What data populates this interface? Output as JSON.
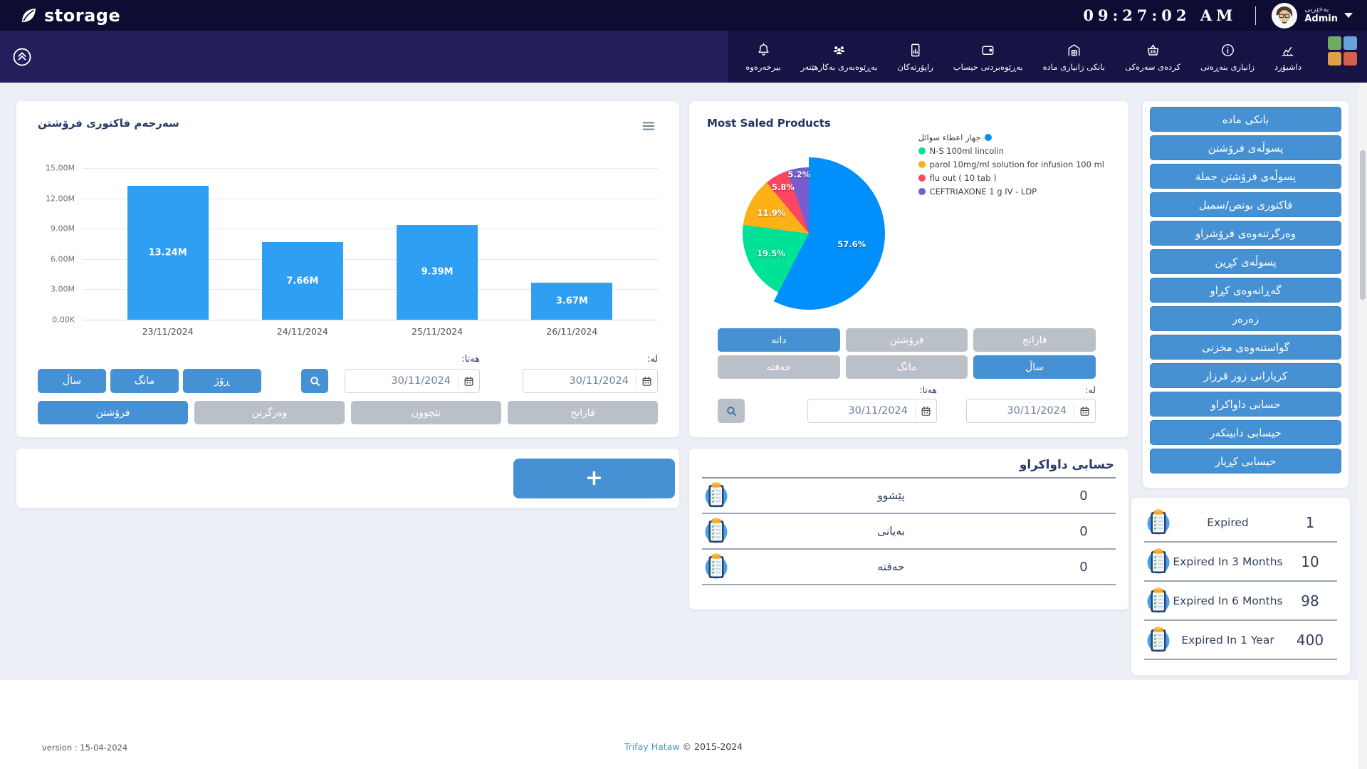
{
  "header": {
    "app_name": "storage",
    "clock": "09:27:02 AM",
    "greeting": "بەخێربی",
    "user": "Admin"
  },
  "nav": {
    "items": [
      {
        "label": "بیرخەرەوە",
        "icon": "bell-icon"
      },
      {
        "label": "بەڕێوەبەری بەکارهێنەر",
        "icon": "users-icon"
      },
      {
        "label": "راپۆرتەکان",
        "icon": "report-icon"
      },
      {
        "label": "بەڕێوەبردنی حیساب",
        "icon": "wallet-icon"
      },
      {
        "label": "بانکی زانیاری ماده",
        "icon": "warehouse-icon"
      },
      {
        "label": "کردەی سەرەکی",
        "icon": "basket-icon"
      },
      {
        "label": "زانیاری بنەڕەتی",
        "icon": "info-icon"
      },
      {
        "label": "داشبۆرد",
        "icon": "dashboard-icon"
      }
    ]
  },
  "sales_chart": {
    "type": "bar",
    "title": "سەرجەم فاکتوری فرۆشتن",
    "categories": [
      "23/11/2024",
      "24/11/2024",
      "25/11/2024",
      "26/11/2024"
    ],
    "values": [
      13.24,
      7.66,
      9.39,
      3.67
    ],
    "value_labels": [
      "13.24M",
      "7.66M",
      "9.39M",
      "3.67M"
    ],
    "y_ticks": [
      "15.00M",
      "12.00M",
      "9.00M",
      "6.00M",
      "3.00M",
      "0.00K"
    ],
    "y_max": 15,
    "bar_color": "#2e9ff2",
    "filters": {
      "period_buttons": [
        "ساڵ",
        "مانگ",
        "ڕۆژ"
      ],
      "to_label": "هەتا:",
      "from_label": "لە:",
      "to_value": "30/11/2024",
      "from_value": "30/11/2024",
      "type_buttons": [
        {
          "label": "فرۆشتن",
          "active": true
        },
        {
          "label": "وەرگرتن",
          "active": false
        },
        {
          "label": "تێچوون",
          "active": false
        },
        {
          "label": "قازانج",
          "active": false
        }
      ]
    }
  },
  "add_button": {
    "label": "+"
  },
  "pie_card": {
    "type": "pie",
    "title": "Most Saled Products",
    "slices": [
      {
        "label": "جهاز اعطاء سوائل",
        "pct": 57.6,
        "pct_label": "57.6%",
        "color": "#008FFB"
      },
      {
        "label": "N-S 100ml lincolin",
        "pct": 19.5,
        "pct_label": "19.5%",
        "color": "#00E396"
      },
      {
        "label": "parol 10mg/ml solution for infusion 100 ml",
        "pct": 11.9,
        "pct_label": "11.9%",
        "color": "#FEB019"
      },
      {
        "label": "flu out ( 10 tab )",
        "pct": 5.8,
        "pct_label": "5.8%",
        "color": "#FF4560"
      },
      {
        "label": "CEFTRIAXONE 1 g IV - LDP",
        "pct": 5.2,
        "pct_label": "5.2%",
        "color": "#775DD0"
      }
    ],
    "filters": {
      "row1": [
        {
          "label": "دانه",
          "active": true
        },
        {
          "label": "فرۆشتن",
          "active": false
        },
        {
          "label": "قازانج",
          "active": false
        }
      ],
      "row2": [
        {
          "label": "حەفتە",
          "active": false
        },
        {
          "label": "مانگ",
          "active": false
        },
        {
          "label": "ساڵ",
          "active": true
        }
      ],
      "to_label": "هەتا:",
      "from_label": "لە:",
      "to_value": "30/11/2024",
      "from_value": "30/11/2024"
    }
  },
  "requested_account": {
    "title": "حسابی داواکراو",
    "rows": [
      {
        "label": "پێشوو",
        "value": "0"
      },
      {
        "label": "بەیانی",
        "value": "0"
      },
      {
        "label": "حەفتە",
        "value": "0"
      }
    ]
  },
  "sidebar": {
    "buttons": [
      "بانکی ماده",
      "پسوڵەی فرۆشتن",
      "پسوڵەی فرۆشتن جملة",
      "فاکتوری بونص/سمبل",
      "وەرگرتنەوەی فرۆشراو",
      "پسوڵەی کڕین",
      "گەڕانەوەی کڕاو",
      "زەرەر",
      "گواستنەوەی مخزنی",
      "کریارانی زور قرزار",
      "حسابی داواکراو",
      "حیسابی دابینکەر",
      "حیسابی کڕیار"
    ]
  },
  "expiry": {
    "rows": [
      {
        "label": "Expired",
        "value": "1"
      },
      {
        "label": "Expired In 3 Months",
        "value": "10"
      },
      {
        "label": "Expired In 6 Months",
        "value": "98"
      },
      {
        "label": "Expired In 1 Year",
        "value": "400"
      }
    ]
  },
  "footer": {
    "version": "version : 15-04-2024",
    "brand": "Trifay Hataw",
    "copyright": "© 2015-2024"
  }
}
